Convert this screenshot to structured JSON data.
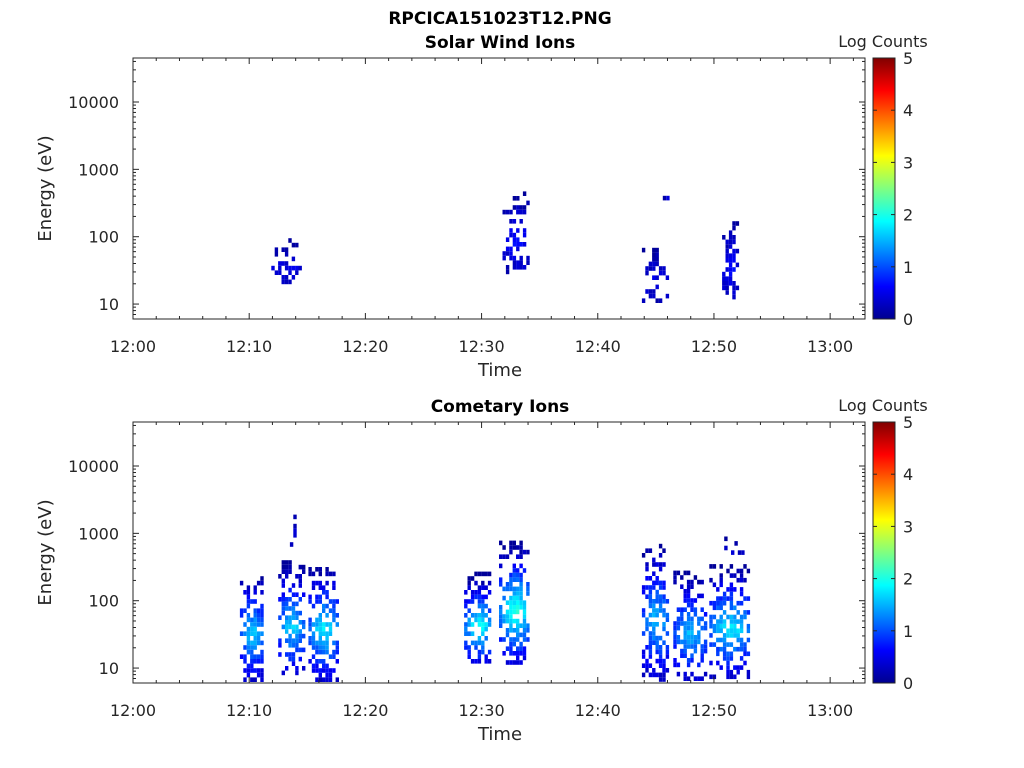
{
  "figure": {
    "title": "RPCICA151023T12.PNG"
  },
  "colormap": [
    "#00008f",
    "#0000ff",
    "#0080ff",
    "#00ffff",
    "#80ff80",
    "#ffff00",
    "#ff8000",
    "#ff0000",
    "#800000"
  ],
  "chart_data": [
    {
      "type": "heatmap",
      "title": "Solar Wind Ions",
      "xlabel": "Time",
      "ylabel": "Energy (eV)",
      "x_ticks": [
        "12:00",
        "12:10",
        "12:20",
        "12:30",
        "12:40",
        "12:50",
        "13:00"
      ],
      "xlim": [
        "12:00",
        "13:03"
      ],
      "y_scale": "log",
      "y_ticks": [
        "10",
        "100",
        "1000",
        "10000"
      ],
      "ylim": [
        6,
        45000
      ],
      "colorbar": {
        "label": "Log Counts",
        "range": [
          0,
          5
        ],
        "ticks": [
          "0",
          "1",
          "2",
          "3",
          "4",
          "5"
        ]
      },
      "grid": false,
      "clusters": [
        {
          "t_start": "12:11.9",
          "t_end": "12:14.3",
          "e_min": 22,
          "e_max": 95,
          "level": 0.3,
          "density": 0.45
        },
        {
          "t_start": "12:31.8",
          "t_end": "12:34.1",
          "e_min": 28,
          "e_max": 470,
          "level": 0.4,
          "density": 0.45
        },
        {
          "t_start": "12:43.8",
          "t_end": "12:46.1",
          "e_min": 12,
          "e_max": 80,
          "level": 0.3,
          "density": 0.35
        },
        {
          "t_start": "12:45.6",
          "t_end": "12:46.1",
          "e_min": 350,
          "e_max": 650,
          "level": 0.2,
          "density": 0.3
        },
        {
          "t_start": "12:50.7",
          "t_end": "12:52.0",
          "e_min": 12,
          "e_max": 170,
          "level": 0.4,
          "density": 0.6
        }
      ]
    },
    {
      "type": "heatmap",
      "title": "Cometary Ions",
      "xlabel": "Time",
      "ylabel": "Energy (eV)",
      "x_ticks": [
        "12:00",
        "12:10",
        "12:20",
        "12:30",
        "12:40",
        "12:50",
        "13:00"
      ],
      "xlim": [
        "12:00",
        "13:03"
      ],
      "y_scale": "log",
      "y_ticks": [
        "10",
        "100",
        "1000",
        "10000"
      ],
      "ylim": [
        6,
        45000
      ],
      "colorbar": {
        "label": "Log Counts",
        "range": [
          0,
          5
        ],
        "ticks": [
          "0",
          "1",
          "2",
          "3",
          "4",
          "5"
        ]
      },
      "grid": false,
      "clusters": [
        {
          "t_start": "12:09.2",
          "t_end": "12:11.2",
          "e_min": 7,
          "e_max": 270,
          "level": 1.2,
          "density": 0.6
        },
        {
          "t_start": "12:12.5",
          "t_end": "12:14.6",
          "e_min": 8,
          "e_max": 400,
          "level": 1.2,
          "density": 0.6
        },
        {
          "t_start": "12:15.1",
          "t_end": "12:17.6",
          "e_min": 7,
          "e_max": 370,
          "level": 1.3,
          "density": 0.6
        },
        {
          "t_start": "12:13.5",
          "t_end": "12:14.0",
          "e_min": 700,
          "e_max": 2600,
          "level": 0.2,
          "density": 0.3
        },
        {
          "t_start": "12:28.5",
          "t_end": "12:30.8",
          "e_min": 12,
          "e_max": 270,
          "level": 1.4,
          "density": 0.6
        },
        {
          "t_start": "12:31.5",
          "t_end": "12:34.1",
          "e_min": 12,
          "e_max": 780,
          "level": 1.5,
          "density": 0.6
        },
        {
          "t_start": "12:43.8",
          "t_end": "12:46.1",
          "e_min": 7,
          "e_max": 700,
          "level": 1.1,
          "density": 0.55
        },
        {
          "t_start": "12:46.5",
          "t_end": "12:49.3",
          "e_min": 7,
          "e_max": 280,
          "level": 1.1,
          "density": 0.6
        },
        {
          "t_start": "12:49.6",
          "t_end": "12:53.0",
          "e_min": 8,
          "e_max": 350,
          "level": 1.3,
          "density": 0.55
        },
        {
          "t_start": "12:50.0",
          "t_end": "12:52.6",
          "e_min": 500,
          "e_max": 1050,
          "level": 0.2,
          "density": 0.2
        }
      ]
    }
  ]
}
